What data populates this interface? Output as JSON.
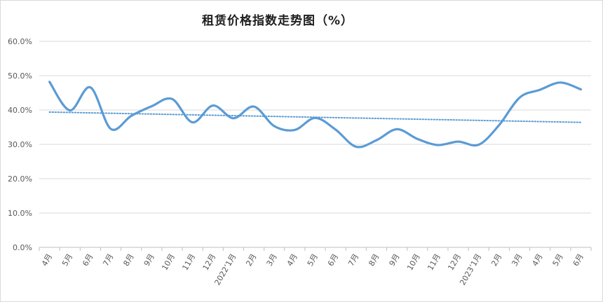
{
  "chart_data": {
    "type": "line",
    "title": "租赁价格指数走势图（%）",
    "xlabel": "",
    "ylabel": "",
    "ylim": [
      0,
      60
    ],
    "y_tick_labels": [
      "0.0%",
      "10.0%",
      "20.0%",
      "30.0%",
      "40.0%",
      "50.0%",
      "60.0%"
    ],
    "y_tick_values": [
      0,
      10,
      20,
      30,
      40,
      50,
      60
    ],
    "categories": [
      "4月",
      "5月",
      "6月",
      "7月",
      "8月",
      "9月",
      "10月",
      "11月",
      "12月",
      "2022’1月",
      "2月",
      "3月",
      "4月",
      "5月",
      "6月",
      "7月",
      "8月",
      "9月",
      "10月",
      "11月",
      "12月",
      "2023’1月",
      "2月",
      "3月",
      "4月",
      "5月",
      "6月"
    ],
    "series": [
      {
        "values": [
          48.2,
          39.9,
          46.6,
          34.5,
          38.3,
          41.1,
          43.2,
          36.4,
          41.3,
          37.6,
          41.0,
          35.3,
          34.2,
          37.7,
          34.3,
          29.3,
          31.2,
          34.4,
          31.6,
          29.8,
          30.8,
          29.9,
          35.6,
          43.6,
          45.9,
          48.0,
          46.0
        ],
        "color": "#5b9bd5",
        "style": "smooth-solid"
      }
    ],
    "trendline": {
      "type": "linear",
      "start": 39.4,
      "end": 36.4,
      "color": "#5b9bd5",
      "style": "dotted"
    },
    "grid": true,
    "legend": "none"
  }
}
